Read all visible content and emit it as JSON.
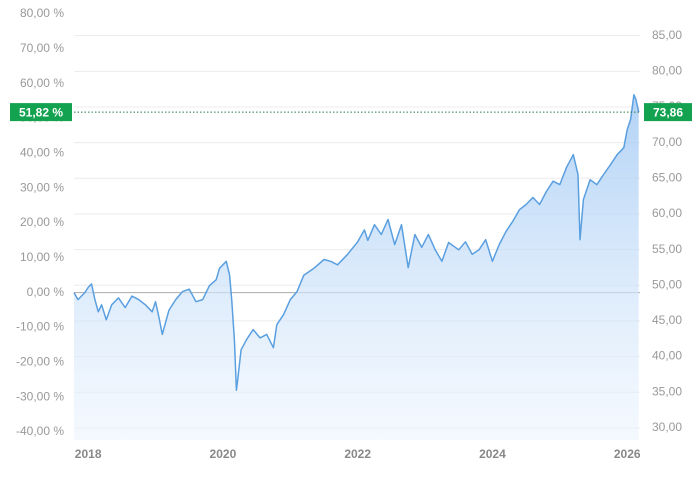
{
  "chart_data": {
    "type": "line",
    "x": [
      2017.79,
      2017.85,
      2017.95,
      2018.0,
      2018.05,
      2018.1,
      2018.15,
      2018.2,
      2018.27,
      2018.35,
      2018.45,
      2018.55,
      2018.65,
      2018.75,
      2018.85,
      2018.95,
      2019.0,
      2019.05,
      2019.1,
      2019.2,
      2019.3,
      2019.4,
      2019.5,
      2019.6,
      2019.7,
      2019.8,
      2019.9,
      2019.95,
      2020.0,
      2020.05,
      2020.1,
      2020.13,
      2020.17,
      2020.2,
      2020.22,
      2020.27,
      2020.35,
      2020.45,
      2020.55,
      2020.65,
      2020.75,
      2020.8,
      2020.9,
      2021.0,
      2021.1,
      2021.2,
      2021.35,
      2021.5,
      2021.6,
      2021.7,
      2021.85,
      2022.0,
      2022.1,
      2022.15,
      2022.25,
      2022.35,
      2022.45,
      2022.55,
      2022.65,
      2022.75,
      2022.85,
      2022.95,
      2023.05,
      2023.15,
      2023.25,
      2023.35,
      2023.5,
      2023.6,
      2023.7,
      2023.8,
      2023.9,
      2024.0,
      2024.1,
      2024.2,
      2024.3,
      2024.4,
      2024.5,
      2024.6,
      2024.7,
      2024.8,
      2024.9,
      2025.0,
      2025.1,
      2025.2,
      2025.27,
      2025.3,
      2025.35,
      2025.45,
      2025.55,
      2025.65,
      2025.75,
      2025.85,
      2025.95,
      2026.0,
      2026.05,
      2026.1,
      2026.13,
      2026.17
    ],
    "series": [
      {
        "color": "#5a9fe0",
        "values": [
          0,
          -2,
          0,
          1.5,
          2.5,
          -2,
          -5.5,
          -3.5,
          -7.8,
          -3.5,
          -1.5,
          -4.3,
          -1,
          -2,
          -3.5,
          -5.5,
          -2.6,
          -7,
          -12,
          -5,
          -2,
          0.3,
          1,
          -2.6,
          -2,
          2,
          3.7,
          7,
          8,
          9,
          5,
          -2,
          -13.5,
          -28,
          -25,
          -16.4,
          -13.5,
          -10.6,
          -13,
          -12,
          -15.8,
          -9.2,
          -6.3,
          -2,
          0.3,
          5,
          7,
          9.5,
          9,
          8,
          11,
          14.6,
          18,
          15,
          19.5,
          16.7,
          21,
          13.8,
          19.5,
          7.2,
          16.7,
          13,
          16.7,
          12.3,
          9,
          14.4,
          12.3,
          14.6,
          11,
          12.3,
          15.2,
          9,
          13.8,
          17.5,
          20.4,
          23.8,
          25.3,
          27.3,
          25.3,
          29,
          32,
          31,
          36,
          39.6,
          33.9,
          15.2,
          26.7,
          32.4,
          31,
          33.9,
          36.7,
          39.6,
          41.6,
          46.8,
          49.7,
          56.8,
          55.4,
          51.82
        ]
      }
    ],
    "xlim": [
      2017.79,
      2026.19
    ],
    "xticks": [
      2018,
      2020,
      2022,
      2024,
      2026
    ],
    "ylim": [
      -42.3,
      84.0
    ],
    "yticks": [
      {
        "value": 80,
        "label": "80,00 %"
      },
      {
        "value": 70,
        "label": "70,00 %"
      },
      {
        "value": 60,
        "label": "60,00 %"
      },
      {
        "value": 50,
        "label": "50,00 %"
      },
      {
        "value": 40,
        "label": "40,00 %"
      },
      {
        "value": 30,
        "label": "30,00 %"
      },
      {
        "value": 20,
        "label": "20,00 %"
      },
      {
        "value": 10,
        "label": "10,00 %"
      },
      {
        "value": 0,
        "label": "0,00 %"
      },
      {
        "value": -10,
        "label": "-10,00 %"
      },
      {
        "value": -20,
        "label": "-20,00 %"
      },
      {
        "value": -30,
        "label": "-30,00 %"
      },
      {
        "value": -40,
        "label": "-40,00 %"
      }
    ],
    "y2lim": [
      28.3,
      90.0
    ],
    "y2ticks": [
      {
        "value": 85,
        "label": "85,00"
      },
      {
        "value": 80,
        "label": "80,00"
      },
      {
        "value": 75,
        "label": "75,00"
      },
      {
        "value": 70,
        "label": "70,00"
      },
      {
        "value": 65,
        "label": "65,00"
      },
      {
        "value": 60,
        "label": "60,00"
      },
      {
        "value": 55,
        "label": "55,00"
      },
      {
        "value": 50,
        "label": "50,00"
      },
      {
        "value": 45,
        "label": "45,00"
      },
      {
        "value": 40,
        "label": "40,00"
      },
      {
        "value": 35,
        "label": "35,00"
      },
      {
        "value": 30,
        "label": "30,00"
      }
    ],
    "last_value": {
      "left": {
        "value": 51.82,
        "label": "51,82 %"
      },
      "right": {
        "value": 73.86,
        "label": "73,86"
      },
      "color": "#13a350"
    }
  }
}
